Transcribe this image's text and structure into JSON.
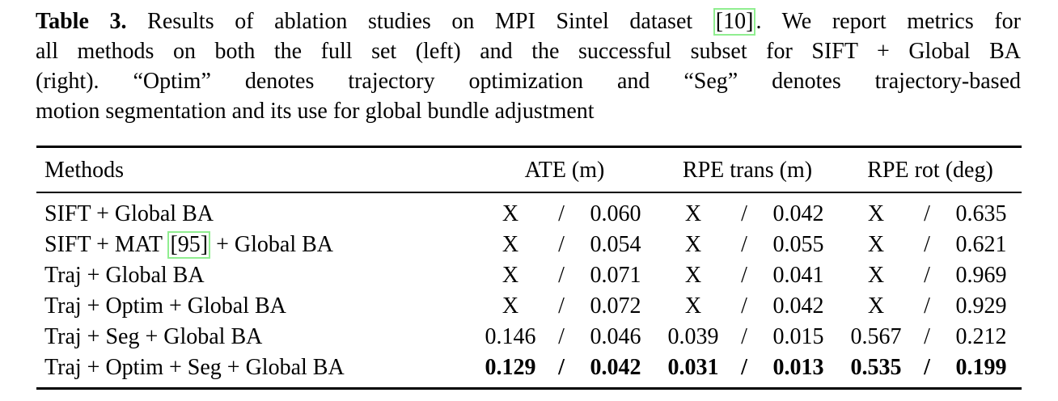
{
  "colors": {
    "text": "#000000",
    "background": "#ffffff",
    "citation_border": "#90ee90"
  },
  "caption": {
    "label": "Table 3.",
    "line1_before_citation": " Results of ablation studies on MPI Sintel dataset ",
    "citation": "[10]",
    "line1_after_citation": ". We report metrics for",
    "line2": "all methods on both the full set (left) and the successful subset for SIFT + Global BA",
    "line3": "(right). “Optim” denotes trajectory optimization and “Seg” denotes trajectory-based",
    "line4": "motion segmentation and its use for global bundle adjustment"
  },
  "table": {
    "headers": {
      "methods": "Methods",
      "ate": "ATE (m)",
      "rpe_trans": "RPE trans (m)",
      "rpe_rot": "RPE rot (deg)"
    },
    "separator": "/",
    "rows": [
      {
        "method": "SIFT + Global BA",
        "ate": [
          "X",
          "0.060"
        ],
        "rpe_trans": [
          "X",
          "0.042"
        ],
        "rpe_rot": [
          "X",
          "0.635"
        ],
        "bold": false
      },
      {
        "method_before": "SIFT + MAT ",
        "method_citation": "[95]",
        "method_after": " + Global BA",
        "ate": [
          "X",
          "0.054"
        ],
        "rpe_trans": [
          "X",
          "0.055"
        ],
        "rpe_rot": [
          "X",
          "0.621"
        ],
        "bold": false
      },
      {
        "method": "Traj + Global BA",
        "ate": [
          "X",
          "0.071"
        ],
        "rpe_trans": [
          "X",
          "0.041"
        ],
        "rpe_rot": [
          "X",
          "0.969"
        ],
        "bold": false
      },
      {
        "method": "Traj + Optim + Global BA",
        "ate": [
          "X",
          "0.072"
        ],
        "rpe_trans": [
          "X",
          "0.042"
        ],
        "rpe_rot": [
          "X",
          "0.929"
        ],
        "bold": false
      },
      {
        "method": "Traj + Seg + Global BA",
        "ate": [
          "0.146",
          "0.046"
        ],
        "rpe_trans": [
          "0.039",
          "0.015"
        ],
        "rpe_rot": [
          "0.567",
          "0.212"
        ],
        "bold": false
      },
      {
        "method": "Traj + Optim + Seg + Global BA",
        "ate": [
          "0.129",
          "0.042"
        ],
        "rpe_trans": [
          "0.031",
          "0.013"
        ],
        "rpe_rot": [
          "0.535",
          "0.199"
        ],
        "bold": true
      }
    ]
  }
}
